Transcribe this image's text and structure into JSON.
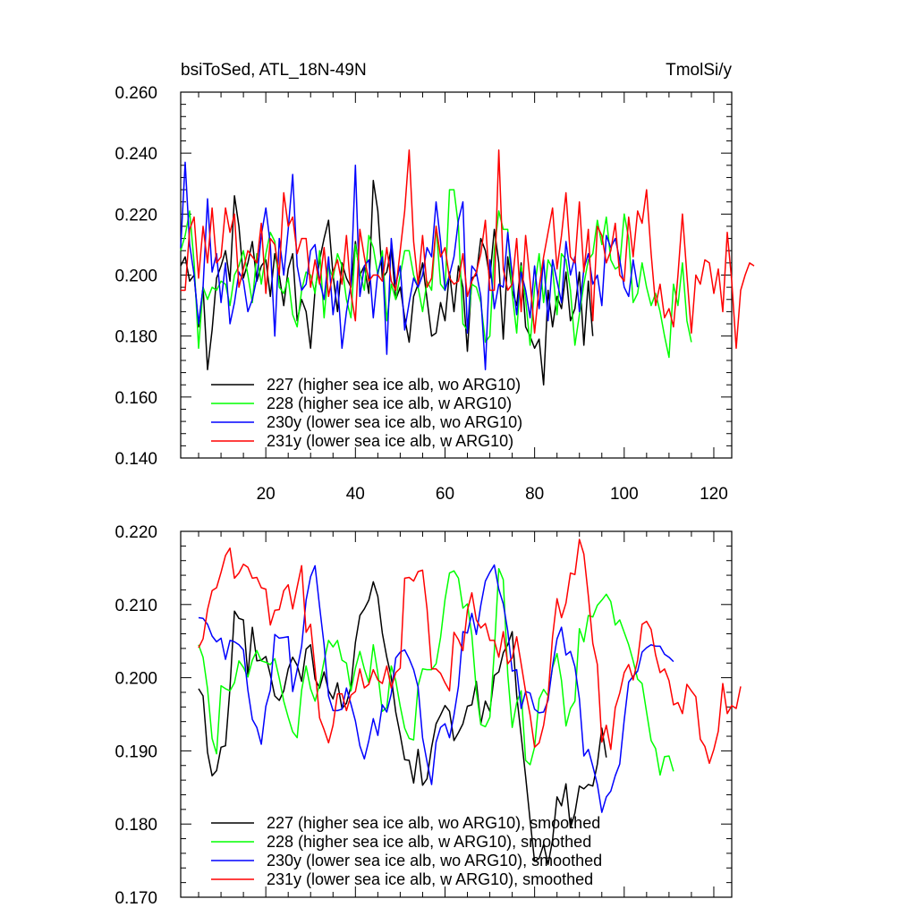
{
  "colors": {
    "s227": "#000000",
    "s228": "#00ff00",
    "s230": "#0000ff",
    "s231": "#ff0000"
  },
  "chart_data": [
    {
      "type": "line",
      "title": "bsiToSed, ATL_18N-49N",
      "units": "TmolSi/y",
      "xlabel": "",
      "ylabel": "",
      "xlim": [
        1,
        124
      ],
      "ylim": [
        0.14,
        0.26
      ],
      "x_ticks": [
        "20",
        "40",
        "60",
        "80",
        "100",
        "120"
      ],
      "y_ticks": [
        "0.140",
        "0.160",
        "0.180",
        "0.200",
        "0.220",
        "0.240",
        "0.260"
      ],
      "legend": [
        "227 (higher sea ice alb, wo ARG10)",
        "228 (higher sea ice alb, w ARG10)",
        "230y (lower sea ice alb, wo ARG10)",
        "231y (lower sea ice alb, w ARG10)"
      ],
      "legend_position": "bottom-left",
      "series": [
        {
          "name": "227",
          "color_key": "s227",
          "x_start": 1,
          "values": [
            0.203,
            0.206,
            0.198,
            0.2,
            0.183,
            0.196,
            0.169,
            0.182,
            0.199,
            0.203,
            0.208,
            0.198,
            0.226,
            0.216,
            0.199,
            0.204,
            0.211,
            0.198,
            0.203,
            0.205,
            0.193,
            0.207,
            0.2,
            0.19,
            0.202,
            0.207,
            0.185,
            0.192,
            0.188,
            0.176,
            0.195,
            0.205,
            0.212,
            0.218,
            0.2,
            0.188,
            0.204,
            0.199,
            0.196,
            0.211,
            0.2,
            0.203,
            0.194,
            0.231,
            0.221,
            0.199,
            0.201,
            0.209,
            0.192,
            0.196,
            0.186,
            0.178,
            0.193,
            0.197,
            0.204,
            0.192,
            0.18,
            0.181,
            0.191,
            0.185,
            0.201,
            0.188,
            0.203,
            0.196,
            0.175,
            0.199,
            0.2,
            0.212,
            0.208,
            0.199,
            0.215,
            0.204,
            0.179,
            0.206,
            0.195,
            0.19,
            0.204,
            0.183,
            0.18,
            0.176,
            0.179,
            0.164,
            0.195,
            0.183,
            0.193,
            0.189,
            0.201,
            0.185,
            0.189,
            0.201,
            0.177,
            0.198,
            0.18
          ]
        },
        {
          "name": "228",
          "color_key": "s228",
          "x_start": 1,
          "values": [
            0.208,
            0.213,
            0.221,
            0.204,
            0.176,
            0.196,
            0.192,
            0.196,
            0.195,
            0.198,
            0.197,
            0.19,
            0.2,
            0.203,
            0.208,
            0.2,
            0.191,
            0.207,
            0.197,
            0.207,
            0.214,
            0.211,
            0.196,
            0.194,
            0.199,
            0.187,
            0.183,
            0.195,
            0.201,
            0.2,
            0.194,
            0.208,
            0.186,
            0.203,
            0.199,
            0.207,
            0.203,
            0.192,
            0.186,
            0.21,
            0.201,
            0.195,
            0.213,
            0.209,
            0.2,
            0.208,
            0.185,
            0.197,
            0.192,
            0.2,
            0.208,
            0.208,
            0.2,
            0.196,
            0.188,
            0.198,
            0.195,
            0.216,
            0.197,
            0.195,
            0.228,
            0.228,
            0.216,
            0.184,
            0.182,
            0.197,
            0.196,
            0.191,
            0.178,
            0.18,
            0.208,
            0.221,
            0.215,
            0.215,
            0.194,
            0.181,
            0.203,
            0.192,
            0.177,
            0.196,
            0.207,
            0.191,
            0.205,
            0.202,
            0.187,
            0.207,
            0.205,
            0.195,
            0.177,
            0.187,
            0.197,
            0.205,
            0.207,
            0.218,
            0.21,
            0.219,
            0.205,
            0.202,
            0.203,
            0.22,
            0.212,
            0.191,
            0.194,
            0.204,
            0.196,
            0.19,
            0.194,
            0.188,
            0.18,
            0.173,
            0.197,
            0.19,
            0.204,
            0.185,
            0.178
          ]
        },
        {
          "name": "230y",
          "color_key": "s230",
          "x_start": 1,
          "values": [
            0.209,
            0.237,
            0.21,
            0.2,
            0.184,
            0.196,
            0.225,
            0.201,
            0.207,
            0.191,
            0.204,
            0.184,
            0.191,
            0.201,
            0.198,
            0.188,
            0.192,
            0.199,
            0.213,
            0.222,
            0.21,
            0.18,
            0.212,
            0.2,
            0.215,
            0.233,
            0.203,
            0.195,
            0.197,
            0.208,
            0.21,
            0.198,
            0.192,
            0.206,
            0.187,
            0.198,
            0.176,
            0.188,
            0.197,
            0.236,
            0.193,
            0.203,
            0.205,
            0.186,
            0.201,
            0.206,
            0.174,
            0.212,
            0.197,
            0.203,
            0.182,
            0.191,
            0.199,
            0.196,
            0.2,
            0.209,
            0.206,
            0.224,
            0.211,
            0.195,
            0.2,
            0.206,
            0.218,
            0.224,
            0.181,
            0.203,
            0.201,
            0.193,
            0.169,
            0.205,
            0.189,
            0.197,
            0.196,
            0.214,
            0.2,
            0.187,
            0.201,
            0.195,
            0.186,
            0.203,
            0.189,
            0.205,
            0.185,
            0.205,
            0.198,
            0.191,
            0.211,
            0.2,
            0.206,
            0.188,
            0.202,
            0.207,
            0.197,
            0.2,
            0.19,
            0.213,
            0.209,
            0.212,
            0.205,
            0.196,
            0.193,
            0.205,
            0.196
          ]
        },
        {
          "name": "231y",
          "color_key": "s231",
          "x_start": 1,
          "values": [
            0.195,
            0.195,
            0.215,
            0.219,
            0.199,
            0.216,
            0.204,
            0.222,
            0.204,
            0.206,
            0.222,
            0.214,
            0.22,
            0.196,
            0.202,
            0.208,
            0.206,
            0.204,
            0.217,
            0.194,
            0.212,
            0.21,
            0.2,
            0.227,
            0.216,
            0.219,
            0.207,
            0.212,
            0.212,
            0.196,
            0.205,
            0.197,
            0.209,
            0.193,
            0.201,
            0.205,
            0.197,
            0.213,
            0.194,
            0.185,
            0.215,
            0.206,
            0.198,
            0.2,
            0.2,
            0.198,
            0.209,
            0.198,
            0.195,
            0.208,
            0.221,
            0.241,
            0.211,
            0.197,
            0.213,
            0.196,
            0.199,
            0.216,
            0.206,
            0.209,
            0.199,
            0.197,
            0.198,
            0.207,
            0.193,
            0.198,
            0.201,
            0.207,
            0.218,
            0.195,
            0.195,
            0.241,
            0.202,
            0.195,
            0.197,
            0.212,
            0.188,
            0.213,
            0.198,
            0.181,
            0.196,
            0.206,
            0.214,
            0.222,
            0.202,
            0.213,
            0.227,
            0.206,
            0.204,
            0.224,
            0.201,
            0.215,
            0.185,
            0.216,
            0.213,
            0.204,
            0.208,
            0.217,
            0.2,
            0.198,
            0.219,
            0.206,
            0.221,
            0.217,
            0.228,
            0.207,
            0.19,
            0.197,
            0.186,
            0.189,
            0.183,
            0.2,
            0.22,
            0.2,
            0.181,
            0.2,
            0.197,
            0.205,
            0.204,
            0.194,
            0.202,
            0.188,
            0.214,
            0.198,
            0.176,
            0.195,
            0.2,
            0.204,
            0.203
          ]
        }
      ]
    },
    {
      "type": "line",
      "title": "",
      "xlabel": "",
      "ylabel": "",
      "xlim": [
        1,
        124
      ],
      "ylim": [
        0.17,
        0.22
      ],
      "x_ticks": [],
      "y_ticks": [
        "0.170",
        "0.180",
        "0.190",
        "0.200",
        "0.210",
        "0.220"
      ],
      "legend": [
        "227 (higher sea ice alb, wo ARG10), smoothed",
        "228 (higher sea ice alb, w ARG10), smoothed",
        "230y (lower sea ice alb, wo ARG10), smoothed",
        "231y (lower sea ice alb, w ARG10), smoothed"
      ],
      "legend_position": "bottom-left",
      "series": [
        {
          "name": "227",
          "color_key": "s227",
          "x_start": 5,
          "values": [
            0.1985,
            0.1975,
            0.1898,
            0.1866,
            0.1873,
            0.1905,
            0.1907,
            0.1986,
            0.2091,
            0.2081,
            0.2079,
            0.2003,
            0.2069,
            0.2023,
            0.2024,
            0.2029,
            0.2004,
            0.1975,
            0.1969,
            0.1982,
            0.2012,
            0.2028,
            0.2017,
            0.1995,
            0.2039,
            0.2045,
            0.1998,
            0.1986,
            0.2008,
            0.1982,
            0.1971,
            0.1993,
            0.1958,
            0.1965,
            0.1988,
            0.2048,
            0.2085,
            0.2094,
            0.2106,
            0.2131,
            0.2111,
            0.2061,
            0.2028,
            0.2001,
            0.1953,
            0.1922,
            0.1888,
            0.1887,
            0.1856,
            0.1902,
            0.1853,
            0.1862,
            0.1905,
            0.1937,
            0.1949,
            0.1962,
            0.1954,
            0.1914,
            0.1925,
            0.1937,
            0.1961,
            0.1963,
            0.1995,
            0.1937,
            0.1968,
            0.1954,
            0.2003,
            0.2008,
            0.2034,
            0.2045,
            0.2063,
            0.1976,
            0.1921,
            0.1865,
            0.1805,
            0.1749,
            0.1753,
            0.1772,
            0.1745,
            0.1778,
            0.1837,
            0.1825,
            0.1855,
            0.1795,
            0.1815,
            0.1852,
            0.1848,
            0.1854,
            0.1852,
            0.1882,
            0.1931,
            0.1891
          ]
        },
        {
          "name": "228",
          "color_key": "s228",
          "x_start": 5,
          "values": [
            0.2045,
            0.2028,
            0.1985,
            0.1917,
            0.1896,
            0.1989,
            0.1985,
            0.1982,
            0.1993,
            0.2023,
            0.2014,
            0.2001,
            0.2024,
            0.2037,
            0.2023,
            0.2021,
            0.2018,
            0.2026,
            0.1999,
            0.1968,
            0.1946,
            0.1926,
            0.1918,
            0.1983,
            0.2016,
            0.1985,
            0.1968,
            0.1991,
            0.2023,
            0.2051,
            0.2042,
            0.2051,
            0.2024,
            0.202,
            0.1982,
            0.2013,
            0.2036,
            0.2012,
            0.1993,
            0.2045,
            0.2006,
            0.1954,
            0.1959,
            0.2016,
            0.1996,
            0.1961,
            0.1931,
            0.1917,
            0.1915,
            0.1989,
            0.2012,
            0.2011,
            0.2011,
            0.2019,
            0.2055,
            0.2107,
            0.2143,
            0.2146,
            0.2136,
            0.2095,
            0.2101,
            0.2058,
            0.1982,
            0.1936,
            0.1933,
            0.1946,
            0.2036,
            0.2149,
            0.2134,
            0.2005,
            0.1932,
            0.1966,
            0.1982,
            0.1887,
            0.1881,
            0.1905,
            0.1971,
            0.1984,
            0.1975,
            0.2014,
            0.2033,
            0.1996,
            0.1934,
            0.1958,
            0.1968,
            0.2067,
            0.2049,
            0.2085,
            0.2083,
            0.2099,
            0.2106,
            0.2114,
            0.2104,
            0.2072,
            0.2079,
            0.2062,
            0.2045,
            0.2023,
            0.1998,
            0.1992,
            0.1953,
            0.1914,
            0.1903,
            0.1867,
            0.1892,
            0.1893,
            0.1872
          ]
        },
        {
          "name": "230y",
          "color_key": "s230",
          "x_start": 5,
          "values": [
            0.2082,
            0.2081,
            0.2073,
            0.2057,
            0.2049,
            0.2054,
            0.2025,
            0.2051,
            0.2049,
            0.2045,
            0.2038,
            0.1983,
            0.1943,
            0.1932,
            0.1909,
            0.1961,
            0.1983,
            0.2059,
            0.2054,
            0.2055,
            0.2056,
            0.1981,
            0.2011,
            0.2043,
            0.2106,
            0.2138,
            0.2153,
            0.2097,
            0.2045,
            0.1975,
            0.1955,
            0.1955,
            0.1957,
            0.1986,
            0.1964,
            0.1941,
            0.1907,
            0.1889,
            0.1914,
            0.1944,
            0.1921,
            0.1963,
            0.1953,
            0.1978,
            0.2027,
            0.2035,
            0.2038,
            0.2026,
            0.2011,
            0.1987,
            0.1918,
            0.1885,
            0.1854,
            0.1912,
            0.1932,
            0.1937,
            0.1918,
            0.1949,
            0.1988,
            0.2063,
            0.2061,
            0.2088,
            0.2059,
            0.2099,
            0.2132,
            0.2144,
            0.2154,
            0.2121,
            0.2101,
            0.2064,
            0.2009,
            0.2011,
            0.1958,
            0.1981,
            0.1979,
            0.1957,
            0.1952,
            0.1953,
            0.1969,
            0.2016,
            0.2053,
            0.2069,
            0.2031,
            0.2036,
            0.2015,
            0.1971,
            0.1893,
            0.1902,
            0.1879,
            0.1854,
            0.1816,
            0.1837,
            0.1845,
            0.1866,
            0.1882,
            0.1942,
            0.1994,
            0.2002,
            0.2009,
            0.2035,
            0.2041,
            0.2045,
            0.2043,
            0.2043,
            0.2032,
            0.2028,
            0.2022
          ]
        },
        {
          "name": "231y",
          "color_key": "s231",
          "x_start": 5,
          "values": [
            0.2041,
            0.2053,
            0.2093,
            0.2119,
            0.2123,
            0.2144,
            0.2167,
            0.2177,
            0.2136,
            0.2143,
            0.2155,
            0.2151,
            0.2136,
            0.2137,
            0.2123,
            0.2121,
            0.2072,
            0.2092,
            0.2093,
            0.2119,
            0.2127,
            0.2094,
            0.2124,
            0.2153,
            0.2062,
            0.2073,
            0.2012,
            0.1945,
            0.1929,
            0.1911,
            0.1935,
            0.1978,
            0.1978,
            0.1955,
            0.1976,
            0.1981,
            0.2012,
            0.1986,
            0.1991,
            0.2011,
            0.1997,
            0.1992,
            0.2016,
            0.1986,
            0.2007,
            0.2013,
            0.2136,
            0.2137,
            0.2132,
            0.2145,
            0.2147,
            0.2094,
            0.2012,
            0.2012,
            0.2006,
            0.1993,
            0.1982,
            0.2062,
            0.2052,
            0.2037,
            0.2092,
            0.2116,
            0.2079,
            0.2068,
            0.2074,
            0.2051,
            0.2051,
            0.2028,
            0.2063,
            0.2019,
            0.2027,
            0.2056,
            0.2019,
            0.1981,
            0.1949,
            0.1905,
            0.1911,
            0.1935,
            0.1975,
            0.2056,
            0.2108,
            0.2082,
            0.2102,
            0.2143,
            0.2141,
            0.2189,
            0.2169,
            0.2112,
            0.2047,
            0.2018,
            0.1912,
            0.1935,
            0.1902,
            0.1959,
            0.1979,
            0.2007,
            0.2018,
            0.1997,
            0.2024,
            0.2073,
            0.2077,
            0.2066,
            0.2031,
            0.2007,
            0.2012,
            0.1996,
            0.1963,
            0.1966,
            0.1951,
            0.1991,
            0.1982,
            0.1974,
            0.1916,
            0.1906,
            0.1883,
            0.1902,
            0.1927,
            0.1992,
            0.1951,
            0.1962,
            0.1958,
            0.1988
          ]
        }
      ]
    }
  ]
}
